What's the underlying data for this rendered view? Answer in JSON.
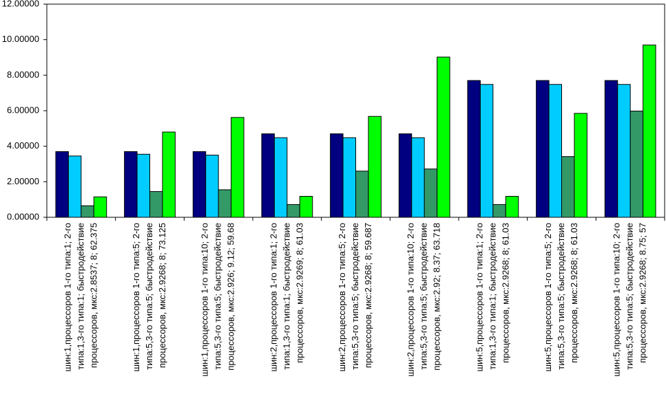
{
  "chart_data": {
    "type": "bar",
    "categories": [
      [
        "шин:1,процессоров 1-го типа:1; 2-го",
        "типа:1,3-го типа:1; быстродействие",
        "процессоров, мкс:2.8537; 8; 62.375"
      ],
      [
        "шин:1,процессоров 1-го типа:5; 2-го",
        "типа:5,3-го типа:5; быстродействие",
        "процессоров, мкс:2.9268; 8; 73.125"
      ],
      [
        "шин:1,процессоров 1-го типа:10; 2-го",
        "типа:5,3-го типа:5; быстродействие",
        "процессоров, мкс:2.926; 9.12; 59.68"
      ],
      [
        "шин:2,процессоров 1-го типа:1; 2-го",
        "типа:1,3-го типа:1; быстродействие",
        "процессоров, мкс:2.9269; 8; 61.03"
      ],
      [
        "шин:2,процессоров 1-го типа:5; 2-го",
        "типа:5,3-го типа:5; быстродействие",
        "процессоров, мкс:2.9268; 8; 59.687"
      ],
      [
        "шин:2,процессоров 1-го типа:10; 2-го",
        "типа:5,3-го типа:5; быстродействие",
        "процессоров, мкс:2.92; 8.37; 63.718"
      ],
      [
        "шин:5,процессоров 1-го типа:1; 2-го",
        "типа:1,3-го типа:1; быстродействие",
        "процессоров, мкс:2.9268; 8; 61.03"
      ],
      [
        "шин:5,процессоров 1-го типа:5; 2-го",
        "типа:5,3-го типа:5; быстродействие",
        "процессоров, мкс:2.9268; 8; 61.03"
      ],
      [
        "шин:5,процессоров 1-го типа:10; 2-го",
        "типа:5,3-го типа:5; быстродействие",
        "процессоров, мкс:2.9268; 8.75; 57"
      ]
    ],
    "series": [
      {
        "color": "#000080",
        "values": [
          3.7,
          3.7,
          3.7,
          4.7,
          4.7,
          4.7,
          7.7,
          7.7,
          7.7
        ]
      },
      {
        "color": "#00ccff",
        "values": [
          3.45,
          3.55,
          3.5,
          4.48,
          4.48,
          4.48,
          7.48,
          7.48,
          7.48
        ]
      },
      {
        "color": "#339966",
        "values": [
          0.65,
          1.45,
          1.55,
          0.72,
          2.6,
          2.72,
          0.72,
          3.42,
          5.98
        ]
      },
      {
        "color": "#00ff00",
        "values": [
          1.15,
          4.8,
          5.62,
          1.18,
          5.68,
          9.02,
          1.18,
          5.85,
          9.7
        ]
      }
    ],
    "ylim": [
      0,
      12
    ],
    "yticks": [
      {
        "value": 0,
        "label": "0.00000"
      },
      {
        "value": 2,
        "label": "2.00000"
      },
      {
        "value": 4,
        "label": "4.00000"
      },
      {
        "value": 6,
        "label": "6.00000"
      },
      {
        "value": 8,
        "label": "8.00000"
      },
      {
        "value": 10,
        "label": "10.00000"
      },
      {
        "value": 12,
        "label": "12.00000"
      }
    ]
  }
}
